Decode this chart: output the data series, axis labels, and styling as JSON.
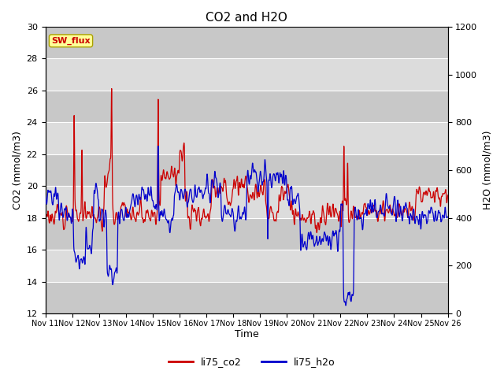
{
  "title": "CO2 and H2O",
  "xlabel": "Time",
  "ylabel_left": "CO2 (mmol/m3)",
  "ylabel_right": "H2O (mmol/m3)",
  "ylim_left": [
    12,
    30
  ],
  "ylim_right": [
    0,
    1200
  ],
  "yticks_left": [
    12,
    14,
    16,
    18,
    20,
    22,
    24,
    26,
    28,
    30
  ],
  "yticks_right": [
    0,
    200,
    400,
    600,
    800,
    1000,
    1200
  ],
  "xtick_labels": [
    "Nov 11",
    "Nov 12",
    "Nov 13",
    "Nov 14",
    "Nov 15",
    "Nov 16",
    "Nov 17",
    "Nov 18",
    "Nov 19",
    "Nov 20",
    "Nov 21",
    "Nov 22",
    "Nov 23",
    "Nov 24",
    "Nov 25",
    "Nov 26"
  ],
  "color_co2": "#cc0000",
  "color_h2o": "#0000cc",
  "legend_co2": "li75_co2",
  "legend_h2o": "li75_h2o",
  "annotation_text": "SW_flux",
  "annotation_color": "#cc0000",
  "annotation_bg": "#ffff99",
  "annotation_border": "#aaa000",
  "bg_color": "#ffffff",
  "plot_bg_color": "#dcdcdc",
  "grid_color": "#ffffff",
  "n_points": 3000,
  "seed": 7
}
